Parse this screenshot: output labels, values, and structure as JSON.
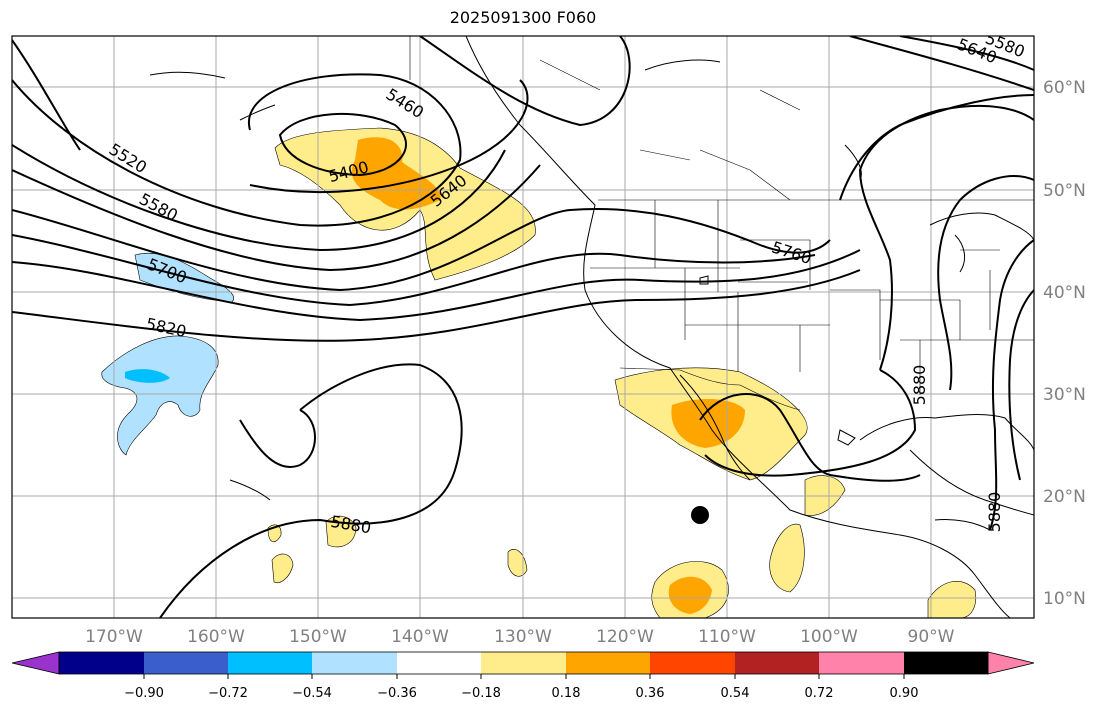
{
  "title": "2025091300 F060",
  "lat_labels": [
    "60°N",
    "50°N",
    "40°N",
    "30°N",
    "20°N",
    "10°N"
  ],
  "lon_labels": [
    "170°W",
    "160°W",
    "150°W",
    "140°W",
    "130°W",
    "120°W",
    "110°W",
    "100°W",
    "90°W"
  ],
  "contour_labels": [
    "5460",
    "5400",
    "5520",
    "5580",
    "5640",
    "5700",
    "5820",
    "5760",
    "5880",
    "5880",
    "5880",
    "5580",
    "5640"
  ],
  "colorbar": {
    "colors": [
      "#9a32cd",
      "#00008b",
      "#3a5fcd",
      "#00bfff",
      "#b0e2ff",
      "#ffffff",
      "#ffec8b",
      "#ffa500",
      "#ff4500",
      "#b22222",
      "#ff82ab"
    ],
    "tick_labels": [
      "−0.90",
      "−0.72",
      "−0.54",
      "−0.36",
      "−0.18",
      "0.18",
      "0.36",
      "0.54",
      "0.72",
      "0.90"
    ]
  }
}
